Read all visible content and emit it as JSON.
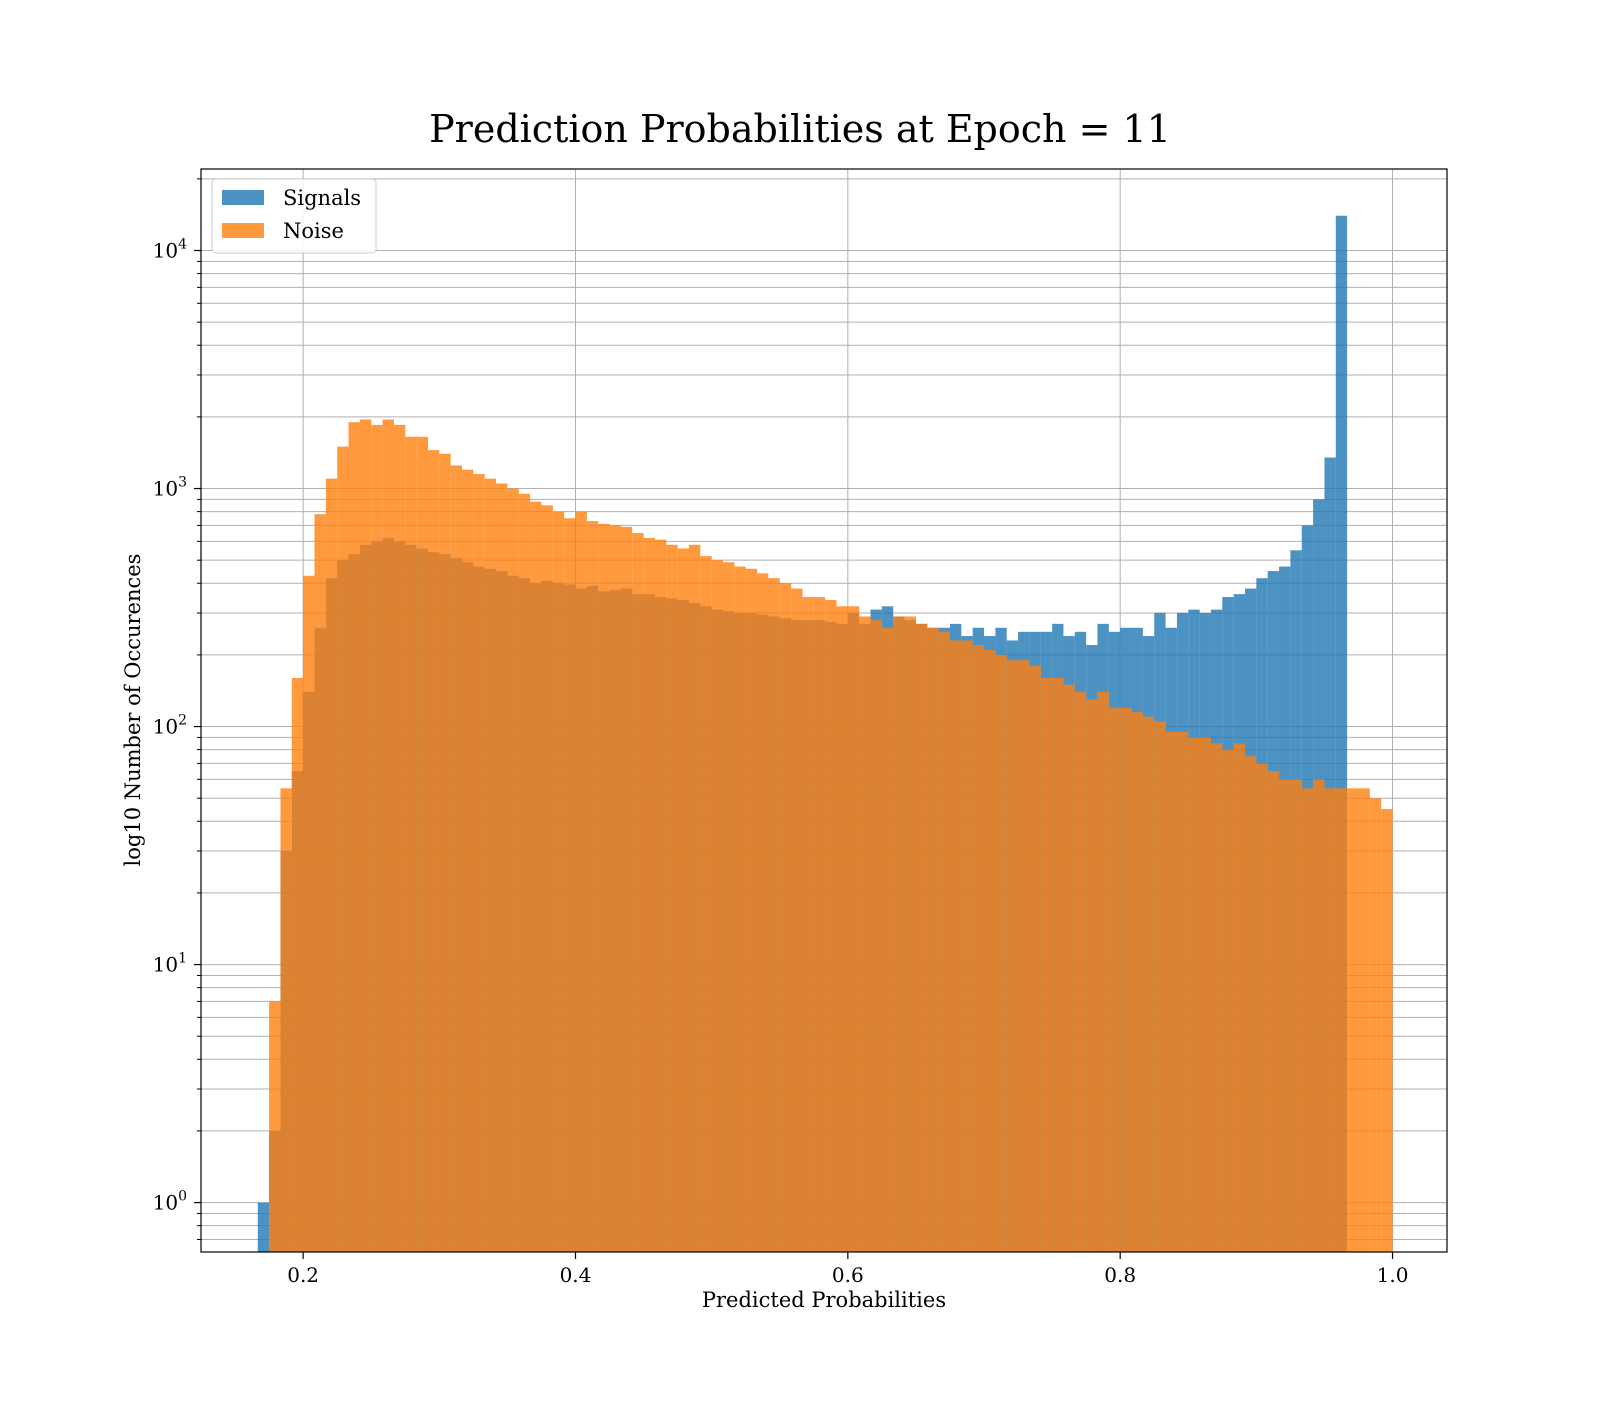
{
  "chart_data": {
    "type": "bar",
    "title": "Prediction Probabilities at Epoch = 11",
    "xlabel": "Predicted Probabilities",
    "ylabel": "log10 Number of Occurences",
    "xlim": [
      0.125,
      1.04
    ],
    "ylim": [
      0.62,
      22000
    ],
    "yscale": "log",
    "grid": true,
    "legend_position": "top-left",
    "x_ticks": [
      {
        "value": 0.2,
        "label": "0.2"
      },
      {
        "value": 0.4,
        "label": "0.4"
      },
      {
        "value": 0.6,
        "label": "0.6"
      },
      {
        "value": 0.8,
        "label": "0.8"
      },
      {
        "value": 1.0,
        "label": "1.0"
      }
    ],
    "y_ticks": [
      {
        "value": 1,
        "base": "10",
        "exp": "0"
      },
      {
        "value": 10,
        "base": "10",
        "exp": "1"
      },
      {
        "value": 100,
        "base": "10",
        "exp": "2"
      },
      {
        "value": 1000,
        "base": "10",
        "exp": "3"
      },
      {
        "value": 10000,
        "base": "10",
        "exp": "4"
      }
    ],
    "bins": {
      "start": 0.1667,
      "width": 0.008333,
      "count": 100
    },
    "series": [
      {
        "name": "Noise",
        "color": "#ff7f0e",
        "values": [
          0,
          7,
          55,
          160,
          430,
          780,
          1100,
          1500,
          1900,
          1950,
          1850,
          1950,
          1850,
          1650,
          1650,
          1450,
          1400,
          1250,
          1200,
          1150,
          1100,
          1050,
          1000,
          950,
          880,
          850,
          800,
          750,
          800,
          730,
          710,
          700,
          690,
          650,
          620,
          610,
          580,
          560,
          580,
          520,
          500,
          490,
          470,
          460,
          440,
          420,
          400,
          380,
          350,
          350,
          340,
          320,
          320,
          290,
          280,
          260,
          290,
          290,
          270,
          260,
          250,
          230,
          230,
          220,
          210,
          200,
          190,
          190,
          180,
          160,
          160,
          150,
          140,
          130,
          140,
          120,
          120,
          115,
          110,
          105,
          95,
          95,
          90,
          90,
          85,
          80,
          85,
          75,
          70,
          65,
          60,
          60,
          55,
          60,
          55,
          55,
          55,
          55,
          50,
          45
        ]
      },
      {
        "name": "Signals",
        "color": "#1f77b4",
        "values": [
          1,
          2,
          30,
          65,
          140,
          260,
          420,
          500,
          530,
          580,
          600,
          620,
          600,
          580,
          560,
          540,
          530,
          510,
          490,
          470,
          460,
          450,
          430,
          420,
          400,
          410,
          400,
          395,
          380,
          390,
          370,
          375,
          380,
          360,
          360,
          350,
          345,
          340,
          330,
          320,
          310,
          305,
          300,
          300,
          295,
          290,
          285,
          280,
          280,
          280,
          275,
          270,
          300,
          270,
          310,
          320,
          290,
          280,
          270,
          260,
          260,
          270,
          240,
          260,
          240,
          260,
          230,
          250,
          250,
          250,
          270,
          240,
          250,
          220,
          270,
          250,
          260,
          260,
          240,
          300,
          260,
          300,
          310,
          300,
          310,
          350,
          360,
          380,
          420,
          450,
          470,
          550,
          700,
          900,
          1350,
          14000,
          0,
          0,
          0,
          0
        ]
      }
    ]
  }
}
